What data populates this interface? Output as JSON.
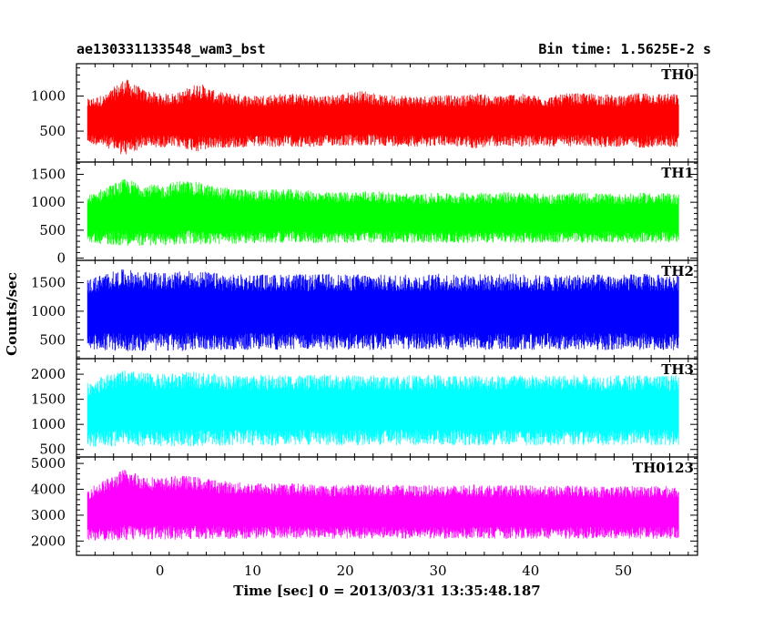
{
  "header": {
    "left_title": "ae130331133548_wam3_bst",
    "right_title": "Bin time: 1.5625E-2 s"
  },
  "chart_data": {
    "type": "line",
    "title": "ae130331133548_wam3_bst",
    "bin_time": "Bin time: 1.5625E-2 s",
    "xlabel": "Time [sec] 0 = 2013/03/31 13:35:48.187",
    "ylabel": "Counts/sec",
    "xlim": [
      -9,
      58
    ],
    "x_range": [
      -7.8,
      56.0
    ],
    "xticks": [
      0,
      10,
      20,
      30,
      40,
      50
    ],
    "grid": false,
    "panels": [
      {
        "name": "TH0",
        "color": "#ff0000",
        "ylim": [
          60,
          1460
        ],
        "yticks": [
          500,
          1000
        ],
        "values": [
          640,
          650,
          700,
          680,
          650,
          660,
          700,
          660,
          650,
          640,
          650,
          660,
          640,
          650,
          670,
          680,
          650,
          650,
          640,
          660,
          640,
          650,
          640,
          660,
          650,
          640,
          660,
          660,
          650,
          640,
          660,
          660,
          650
        ],
        "spread": [
          320,
          380,
          560,
          420,
          380,
          400,
          500,
          400,
          390,
          370,
          380,
          380,
          380,
          360,
          380,
          400,
          360,
          370,
          360,
          370,
          360,
          400,
          360,
          380,
          370,
          360,
          380,
          380,
          380,
          360,
          400,
          380,
          380
        ]
      },
      {
        "name": "TH1",
        "color": "#00ff00",
        "ylim": [
          -40,
          1720
        ],
        "yticks": [
          0,
          500,
          1000,
          1500
        ],
        "values": [
          700,
          760,
          820,
          780,
          760,
          820,
          800,
          760,
          750,
          740,
          750,
          760,
          740,
          720,
          730,
          740,
          730,
          720,
          710,
          720,
          720,
          730,
          720,
          730,
          720,
          710,
          720,
          720,
          720,
          710,
          720,
          720,
          710
        ],
        "spread": [
          420,
          520,
          600,
          560,
          540,
          580,
          560,
          520,
          500,
          480,
          480,
          480,
          470,
          460,
          460,
          470,
          460,
          450,
          440,
          450,
          450,
          460,
          450,
          460,
          450,
          440,
          450,
          450,
          440,
          440,
          450,
          450,
          440
        ]
      },
      {
        "name": "TH2",
        "color": "#0000ff",
        "ylim": [
          170,
          1890
        ],
        "yticks": [
          500,
          1000,
          1500
        ],
        "values": [
          950,
          990,
          1020,
          1000,
          990,
          1000,
          1010,
          990,
          980,
          990,
          980,
          990,
          980,
          990,
          980,
          990,
          980,
          980,
          980,
          990,
          980,
          990,
          980,
          990,
          980,
          980,
          980,
          990,
          980,
          980,
          990,
          980,
          980
        ],
        "spread": [
          620,
          680,
          720,
          700,
          680,
          700,
          700,
          680,
          660,
          670,
          660,
          670,
          660,
          670,
          660,
          670,
          660,
          660,
          660,
          670,
          660,
          670,
          660,
          670,
          660,
          660,
          660,
          670,
          660,
          660,
          670,
          660,
          660
        ]
      },
      {
        "name": "TH3",
        "color": "#00ffff",
        "ylim": [
          350,
          2310
        ],
        "yticks": [
          500,
          1000,
          1500,
          2000
        ],
        "values": [
          1200,
          1280,
          1320,
          1300,
          1280,
          1300,
          1310,
          1290,
          1280,
          1290,
          1280,
          1290,
          1280,
          1290,
          1280,
          1290,
          1280,
          1280,
          1280,
          1290,
          1280,
          1290,
          1280,
          1290,
          1280,
          1280,
          1280,
          1290,
          1280,
          1280,
          1290,
          1280,
          1280
        ],
        "spread": [
          650,
          720,
          760,
          740,
          720,
          740,
          740,
          720,
          700,
          710,
          700,
          710,
          700,
          710,
          700,
          710,
          700,
          700,
          700,
          710,
          700,
          710,
          700,
          710,
          700,
          700,
          700,
          710,
          700,
          700,
          710,
          700,
          700
        ]
      },
      {
        "name": "TH0123",
        "color": "#ff00ff",
        "ylim": [
          1450,
          5250
        ],
        "yticks": [
          2000,
          3000,
          4000,
          5000
        ],
        "values": [
          3050,
          3200,
          3400,
          3300,
          3250,
          3300,
          3280,
          3220,
          3180,
          3170,
          3160,
          3170,
          3150,
          3130,
          3140,
          3150,
          3140,
          3130,
          3120,
          3130,
          3120,
          3140,
          3120,
          3130,
          3120,
          3110,
          3120,
          3120,
          3110,
          3110,
          3120,
          3110,
          3110
        ],
        "spread": [
          1000,
          1200,
          1400,
          1250,
          1200,
          1250,
          1200,
          1150,
          1100,
          1100,
          1080,
          1080,
          1060,
          1050,
          1050,
          1060,
          1050,
          1040,
          1030,
          1040,
          1030,
          1050,
          1030,
          1040,
          1030,
          1020,
          1030,
          1030,
          1020,
          1020,
          1030,
          1020,
          1020
        ]
      }
    ]
  }
}
